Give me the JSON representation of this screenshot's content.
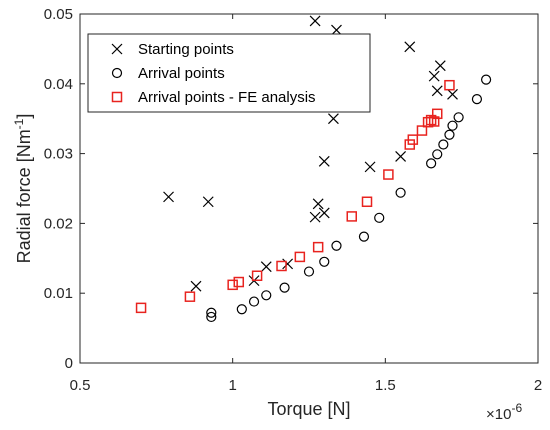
{
  "chart_data": {
    "type": "scatter",
    "xlabel": "Torque [N]",
    "ylabel_main": "Radial force [Nm",
    "ylabel_sup": "-1",
    "ylabel_tail": "]",
    "x_multiplier": {
      "base": "×10",
      "exp": "-6"
    },
    "xlim": [
      0.5,
      2
    ],
    "ylim": [
      0,
      0.05
    ],
    "xticks": [
      0.5,
      1,
      1.5,
      2
    ],
    "xtick_labels": [
      "0.5",
      "1",
      "1.5",
      "2"
    ],
    "yticks": [
      0,
      0.01,
      0.02,
      0.03,
      0.04,
      0.05
    ],
    "ytick_labels": [
      "0",
      "0.01",
      "0.02",
      "0.03",
      "0.04",
      "0.05"
    ],
    "grid": false,
    "legend_position": "top-left",
    "series": [
      {
        "name": "Starting points",
        "marker": "x",
        "color": "#000000",
        "points": [
          [
            0.88,
            0.011
          ],
          [
            0.79,
            0.0238
          ],
          [
            0.92,
            0.0231
          ],
          [
            1.07,
            0.0118
          ],
          [
            1.11,
            0.0138
          ],
          [
            1.18,
            0.0142
          ],
          [
            1.27,
            0.0209
          ],
          [
            1.28,
            0.0228
          ],
          [
            1.3,
            0.0215
          ],
          [
            1.3,
            0.0289
          ],
          [
            1.33,
            0.035
          ],
          [
            1.27,
            0.049
          ],
          [
            1.34,
            0.0477
          ],
          [
            1.45,
            0.0281
          ],
          [
            1.55,
            0.0296
          ],
          [
            1.58,
            0.0453
          ],
          [
            1.66,
            0.0411
          ],
          [
            1.68,
            0.0426
          ],
          [
            1.67,
            0.039
          ],
          [
            1.72,
            0.0385
          ]
        ]
      },
      {
        "name": "Arrival points",
        "marker": "o",
        "color": "#000000",
        "points": [
          [
            0.93,
            0.0072
          ],
          [
            0.93,
            0.0066
          ],
          [
            1.03,
            0.0077
          ],
          [
            1.07,
            0.0088
          ],
          [
            1.11,
            0.0097
          ],
          [
            1.17,
            0.0108
          ],
          [
            1.25,
            0.0131
          ],
          [
            1.3,
            0.0145
          ],
          [
            1.34,
            0.0168
          ],
          [
            1.43,
            0.0181
          ],
          [
            1.48,
            0.0208
          ],
          [
            1.55,
            0.0244
          ],
          [
            1.65,
            0.0286
          ],
          [
            1.67,
            0.0299
          ],
          [
            1.69,
            0.0313
          ],
          [
            1.71,
            0.0327
          ],
          [
            1.72,
            0.034
          ],
          [
            1.74,
            0.0352
          ],
          [
            1.8,
            0.0378
          ],
          [
            1.83,
            0.0406
          ]
        ]
      },
      {
        "name": "Arrival points - FE analysis",
        "marker": "square",
        "color": "#e8231f",
        "points": [
          [
            0.7,
            0.0079
          ],
          [
            0.86,
            0.0095
          ],
          [
            1.0,
            0.0112
          ],
          [
            1.02,
            0.0116
          ],
          [
            1.08,
            0.0125
          ],
          [
            1.16,
            0.0139
          ],
          [
            1.22,
            0.0152
          ],
          [
            1.28,
            0.0166
          ],
          [
            1.39,
            0.021
          ],
          [
            1.44,
            0.0231
          ],
          [
            1.51,
            0.027
          ],
          [
            1.58,
            0.0313
          ],
          [
            1.59,
            0.032
          ],
          [
            1.62,
            0.0333
          ],
          [
            1.64,
            0.0345
          ],
          [
            1.65,
            0.0348
          ],
          [
            1.66,
            0.0346
          ],
          [
            1.67,
            0.0357
          ],
          [
            1.71,
            0.0398
          ]
        ]
      }
    ]
  }
}
